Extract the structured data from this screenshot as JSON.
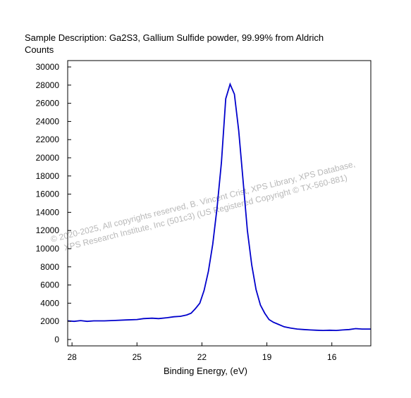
{
  "chart_data": {
    "type": "line",
    "title": "Sample Description:  Ga2S3, Gallium Sulfide powder, 99.99% from Aldrich",
    "ylabel": "Counts",
    "xlabel": "Binding Energy, (eV)",
    "x_reversed": true,
    "xlim": [
      28.2,
      14.2
    ],
    "ylim": [
      -700,
      30700
    ],
    "x_ticks": [
      28,
      25,
      22,
      19,
      16
    ],
    "y_ticks": [
      0,
      2000,
      4000,
      6000,
      8000,
      10000,
      12000,
      14000,
      16000,
      18000,
      20000,
      22000,
      24000,
      26000,
      28000,
      30000
    ],
    "grid": false,
    "series": [
      {
        "color": "#0000cc",
        "x": [
          28.2,
          27.9,
          27.6,
          27.3,
          27.0,
          26.5,
          26.0,
          25.5,
          25.0,
          24.7,
          24.3,
          24.0,
          23.6,
          23.3,
          23.0,
          22.7,
          22.5,
          22.3,
          22.1,
          21.9,
          21.7,
          21.5,
          21.3,
          21.1,
          20.9,
          20.7,
          20.5,
          20.3,
          20.1,
          19.9,
          19.7,
          19.5,
          19.3,
          19.1,
          18.9,
          18.7,
          18.5,
          18.2,
          17.9,
          17.6,
          17.3,
          17.0,
          16.7,
          16.4,
          16.1,
          15.8,
          15.5,
          15.2,
          14.9,
          14.6,
          14.2
        ],
        "y": [
          2050,
          2000,
          2080,
          2000,
          2050,
          2050,
          2100,
          2150,
          2200,
          2300,
          2350,
          2300,
          2400,
          2500,
          2550,
          2700,
          2900,
          3400,
          4000,
          5400,
          7500,
          10500,
          14500,
          19500,
          26500,
          28100,
          27000,
          23000,
          17500,
          12000,
          8200,
          5500,
          3800,
          2900,
          2200,
          1900,
          1700,
          1400,
          1250,
          1150,
          1100,
          1050,
          1020,
          1000,
          1020,
          1000,
          1050,
          1100,
          1200,
          1150,
          1150
        ]
      }
    ]
  },
  "watermark": {
    "line1": "© 2020-2025,  All copyrights reserved,   B. Vincent Crist,  XPS Library, XPS Database,",
    "line2": "XPS Research Institute, Inc (501c3)   (US Registered Copyright © TX-560-881)"
  }
}
